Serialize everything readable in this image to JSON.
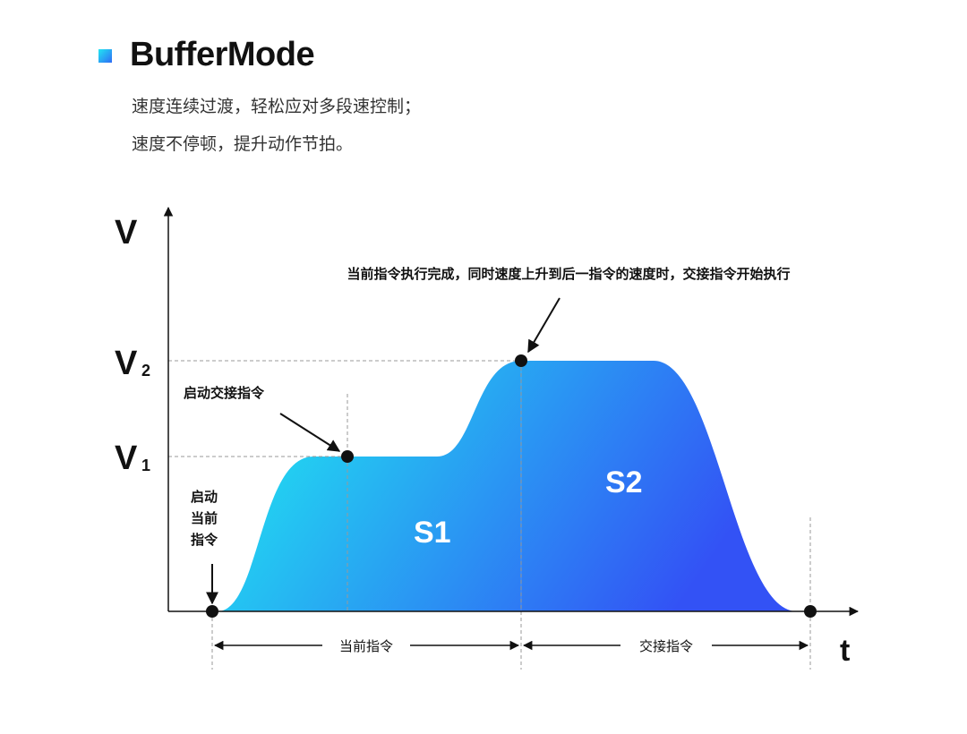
{
  "header": {
    "title": "BufferMode",
    "desc_lines": [
      "速度连续过渡，轻松应对多段速控制；",
      "速度不停顿，提升动作节拍。"
    ]
  },
  "diagram": {
    "y_axis_label": "V",
    "x_axis_label": "t",
    "v1_label": "V",
    "v1_sub": "1",
    "v2_label": "V",
    "v2_sub": "2",
    "area_labels": [
      "S1",
      "S2"
    ],
    "annotations": {
      "start_current": [
        "启动",
        "当前",
        "指令"
      ],
      "start_handover": "启动交接指令",
      "completion": "当前指令执行完成，同时速度上升到后一指令的速度时，交接指令开始执行"
    },
    "spans": {
      "current": "当前指令",
      "handover": "交接指令"
    },
    "colors": {
      "gradient_start": "#1ef2f0",
      "gradient_end": "#3352f5"
    }
  }
}
